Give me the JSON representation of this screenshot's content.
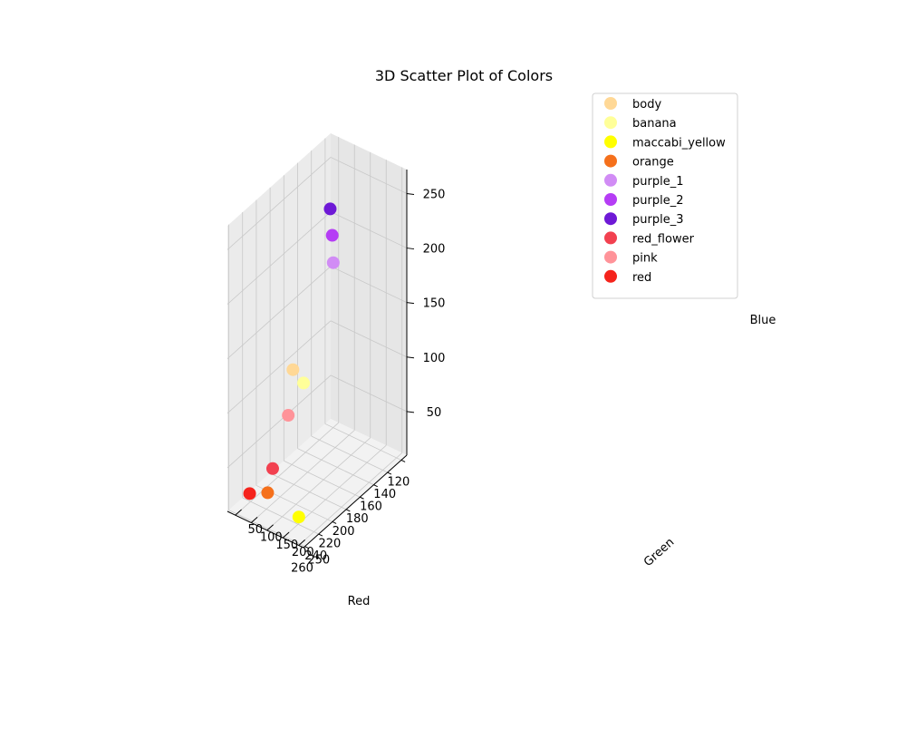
{
  "chart_data": {
    "type": "scatter",
    "projection": "3d",
    "title": "3D Scatter Plot of Colors",
    "xlabel": "Red",
    "ylabel": "Green",
    "zlabel": "Blue",
    "xlim": [
      112,
      262
    ],
    "ylim": [
      25,
      265
    ],
    "zlim": [
      10,
      272
    ],
    "x_ticks": [
      "120",
      "140",
      "160",
      "180",
      "200",
      "220",
      "240",
      "260"
    ],
    "y_ticks": [
      "50",
      "100",
      "150",
      "200",
      "250"
    ],
    "z_ticks": [
      "50",
      "100",
      "150",
      "200",
      "250"
    ],
    "grid": true,
    "legend_position": "top-right",
    "series": [
      {
        "name": "body",
        "color": "#ffd896",
        "x": 252,
        "y": 210,
        "z": 160
      },
      {
        "name": "banana",
        "color": "#ffff99",
        "x": 255,
        "y": 250,
        "z": 155
      },
      {
        "name": "maccabi_yellow",
        "color": "#ffff00",
        "x": 255,
        "y": 235,
        "z": 30
      },
      {
        "name": "orange",
        "color": "#f5701b",
        "x": 245,
        "y": 115,
        "z": 30
      },
      {
        "name": "purple_1",
        "color": "#d18cf5",
        "x": 205,
        "y": 235,
        "z": 235
      },
      {
        "name": "purple_2",
        "color": "#b53df5",
        "x": 165,
        "y": 145,
        "z": 225
      },
      {
        "name": "purple_3",
        "color": "#6e19d6",
        "x": 115,
        "y": 30,
        "z": 205
      },
      {
        "name": "red_flower",
        "color": "#f24150",
        "x": 240,
        "y": 120,
        "z": 50
      },
      {
        "name": "pink",
        "color": "#ff9399",
        "x": 245,
        "y": 180,
        "z": 110
      },
      {
        "name": "red",
        "color": "#f5231c",
        "x": 255,
        "y": 80,
        "z": 30
      }
    ]
  }
}
